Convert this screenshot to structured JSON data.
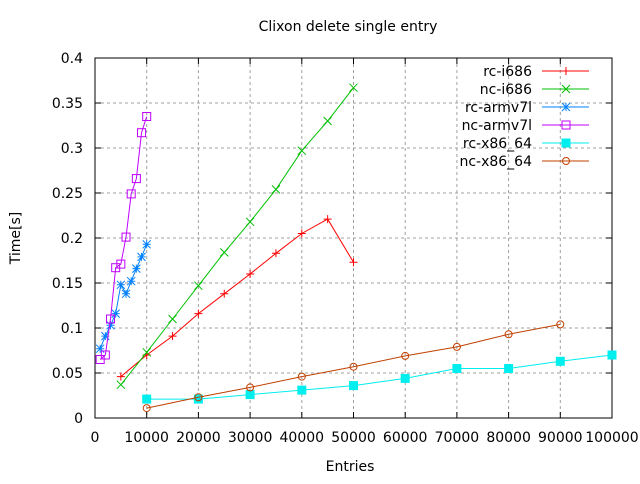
{
  "chart_data": {
    "type": "line",
    "title": "Clixon delete single entry",
    "xlabel": "Entries",
    "ylabel": "Time[s]",
    "xlim": [
      0,
      100000
    ],
    "ylim": [
      0,
      0.4
    ],
    "xticks": [
      "0",
      "10000",
      "20000",
      "30000",
      "40000",
      "50000",
      "60000",
      "70000",
      "80000",
      "90000",
      "100000"
    ],
    "yticks": [
      "0",
      "0.05",
      "0.1",
      "0.15",
      "0.2",
      "0.25",
      "0.3",
      "0.35",
      "0.4"
    ],
    "grid": true,
    "legend_position": "top-right",
    "series": [
      {
        "name": "rc-i686",
        "color": "#ff0000",
        "marker": "plus",
        "x": [
          5000,
          10000,
          15000,
          20000,
          25000,
          30000,
          35000,
          40000,
          45000,
          50000
        ],
        "y": [
          0.046,
          0.07,
          0.091,
          0.116,
          0.138,
          0.16,
          0.183,
          0.205,
          0.221,
          0.173
        ]
      },
      {
        "name": "nc-i686",
        "color": "#00c000",
        "marker": "cross",
        "x": [
          5000,
          10000,
          15000,
          20000,
          25000,
          30000,
          35000,
          40000,
          45000,
          50000
        ],
        "y": [
          0.037,
          0.073,
          0.11,
          0.147,
          0.184,
          0.218,
          0.254,
          0.297,
          0.33,
          0.367
        ]
      },
      {
        "name": "rc-armv7l",
        "color": "#0080ff",
        "marker": "star",
        "x": [
          1000,
          2000,
          3000,
          4000,
          5000,
          6000,
          7000,
          8000,
          9000,
          10000
        ],
        "y": [
          0.077,
          0.091,
          0.103,
          0.116,
          0.148,
          0.138,
          0.152,
          0.166,
          0.179,
          0.193
        ]
      },
      {
        "name": "nc-armv7l",
        "color": "#c000ff",
        "marker": "square",
        "x": [
          1000,
          2000,
          3000,
          4000,
          5000,
          6000,
          7000,
          8000,
          9000,
          10000
        ],
        "y": [
          0.065,
          0.07,
          0.11,
          0.167,
          0.171,
          0.201,
          0.249,
          0.266,
          0.317,
          0.335
        ]
      },
      {
        "name": "rc-x86_64",
        "color": "#00eeee",
        "marker": "filled-square",
        "x": [
          10000,
          20000,
          30000,
          40000,
          50000,
          60000,
          70000,
          80000,
          90000,
          100000
        ],
        "y": [
          0.021,
          0.021,
          0.026,
          0.031,
          0.036,
          0.044,
          0.055,
          0.055,
          0.063,
          0.07
        ]
      },
      {
        "name": "nc-x86_64",
        "color": "#c04000",
        "marker": "circle",
        "x": [
          10000,
          20000,
          30000,
          40000,
          50000,
          60000,
          70000,
          80000,
          90000
        ],
        "y": [
          0.011,
          0.023,
          0.034,
          0.046,
          0.057,
          0.069,
          0.079,
          0.093,
          0.104
        ]
      }
    ]
  }
}
